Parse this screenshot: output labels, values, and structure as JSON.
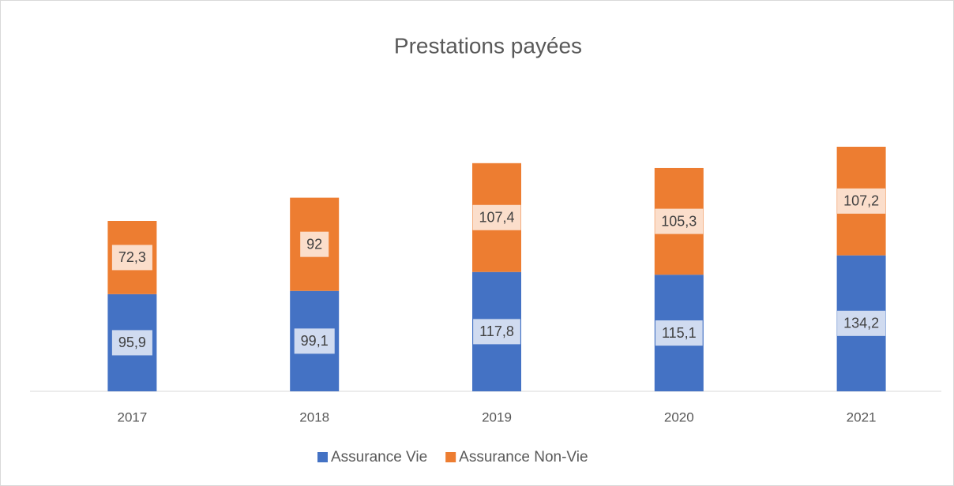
{
  "chart_data": {
    "type": "stacked_bar",
    "title": "Prestations payées",
    "categories": [
      "2017",
      "2018",
      "2019",
      "2020",
      "2021"
    ],
    "series": [
      {
        "name": "Assurance Vie",
        "color": "#4472c4",
        "values": [
          95.9,
          99.1,
          117.8,
          115.1,
          134.2
        ],
        "value_labels": [
          "95,9",
          "99,1",
          "117,8",
          "115,1",
          "134,2"
        ]
      },
      {
        "name": "Assurance Non-Vie",
        "color": "#ed7d31",
        "values": [
          72.3,
          92,
          107.4,
          105.3,
          107.2
        ],
        "value_labels": [
          "72,3",
          "92",
          "107,4",
          "105,3",
          "107,2"
        ]
      }
    ],
    "legend": "bottom"
  }
}
